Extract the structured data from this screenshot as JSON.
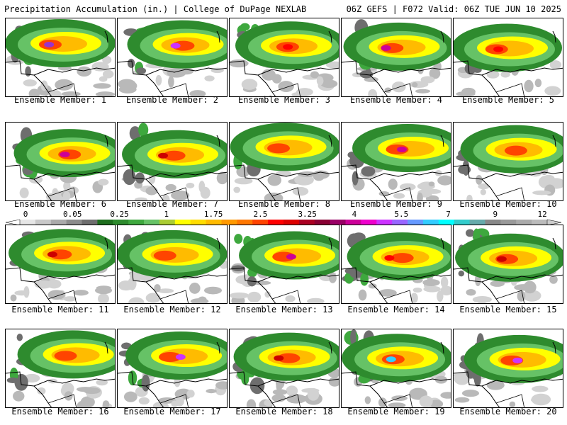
{
  "header": {
    "title_left": "Precipitation Accumulation (in.) | College of DuPage NEXLAB",
    "title_right": "06Z GEFS | F072 Valid: 06Z TUE JUN 10 2025"
  },
  "colorbar": {
    "labels": [
      "0",
      "0.05",
      "0.25",
      "1",
      "1.75",
      "2.5",
      "3.25",
      "4",
      "5.5",
      "7",
      "9",
      "12"
    ],
    "colors": [
      "#e6e6e6",
      "#c8c8c8",
      "#aaaaaa",
      "#8c8c8c",
      "#6e6e6e",
      "#1e6e1e",
      "#2e8b2e",
      "#3ea83e",
      "#66c266",
      "#aacc33",
      "#ffff00",
      "#ffdd00",
      "#ffbb00",
      "#ff9900",
      "#ff7700",
      "#ff4400",
      "#ff0000",
      "#dd0000",
      "#aa0022",
      "#880033",
      "#990066",
      "#cc0099",
      "#ee00cc",
      "#cc33ff",
      "#9966ff",
      "#6699ff",
      "#33ccff",
      "#00ffff",
      "#33cccc",
      "#66aaaa",
      "#888888",
      "#999999",
      "#aaaaaa",
      "#bbbbbb"
    ]
  },
  "members": [
    {
      "label": "Ensemble Member: 1",
      "peak": "#9933cc"
    },
    {
      "label": "Ensemble Member: 2",
      "peak": "#cc33ff"
    },
    {
      "label": "Ensemble Member: 3",
      "peak": "#ff0000"
    },
    {
      "label": "Ensemble Member: 4",
      "peak": "#cc0099"
    },
    {
      "label": "Ensemble Member: 5",
      "peak": "#ff0000"
    },
    {
      "label": "Ensemble Member: 6",
      "peak": "#cc0099"
    },
    {
      "label": "Ensemble Member: 7",
      "peak": "#cc0000"
    },
    {
      "label": "Ensemble Member: 8",
      "peak": "#ff4400"
    },
    {
      "label": "Ensemble Member: 9",
      "peak": "#cc0099"
    },
    {
      "label": "Ensemble Member: 10",
      "peak": "#ff4400"
    },
    {
      "label": "Ensemble Member: 11",
      "peak": "#cc0000"
    },
    {
      "label": "Ensemble Member: 12",
      "peak": "#ff4400"
    },
    {
      "label": "Ensemble Member: 13",
      "peak": "#cc0099"
    },
    {
      "label": "Ensemble Member: 14",
      "peak": "#ff0000"
    },
    {
      "label": "Ensemble Member: 15",
      "peak": "#cc0000"
    },
    {
      "label": "Ensemble Member: 16",
      "peak": "#ff4400"
    },
    {
      "label": "Ensemble Member: 17",
      "peak": "#cc33ff"
    },
    {
      "label": "Ensemble Member: 18",
      "peak": "#cc0000"
    },
    {
      "label": "Ensemble Member: 19",
      "peak": "#33ccff"
    },
    {
      "label": "Ensemble Member: 20",
      "peak": "#cc33ff"
    }
  ]
}
